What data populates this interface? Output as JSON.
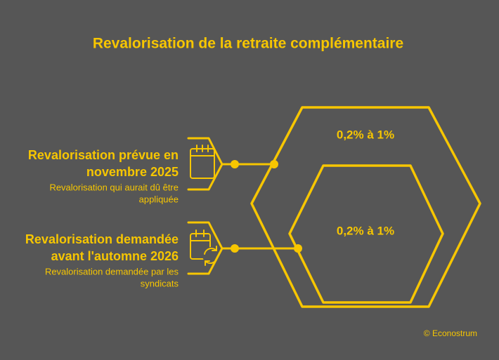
{
  "title": "Revalorisation de la retraite complémentaire",
  "items": [
    {
      "label_lines": [
        "Revalorisation prévue en",
        "novembre 2025"
      ],
      "sublabel_lines": [
        "Revalorisation qui aurait dû être",
        "appliquée"
      ],
      "value": "0,2% à 1%"
    },
    {
      "label_lines": [
        "Revalorisation demandée",
        "avant l'automne 2026"
      ],
      "sublabel_lines": [
        "Revalorisation demandée par les",
        "syndicats"
      ],
      "value": "0,2% à 1%"
    }
  ],
  "credit": "© Econostrum"
}
